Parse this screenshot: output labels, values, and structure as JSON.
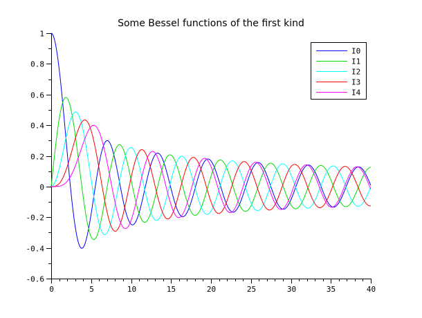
{
  "window": {
    "background": "#ffffff"
  },
  "chart_data": {
    "type": "line",
    "title": "Some Bessel functions of the first kind",
    "function_family": "Bessel functions of the first kind J_n(x), orders 0-4, plotted on x in [0,40]",
    "xlim": [
      0,
      40
    ],
    "ylim": [
      -0.6,
      1
    ],
    "x_ticks": [
      0,
      5,
      10,
      15,
      20,
      25,
      30,
      35,
      40
    ],
    "x_tick_labels": [
      "0",
      "5",
      "10",
      "15",
      "20",
      "25",
      "30",
      "35",
      "40"
    ],
    "x_minor_tick_step": 1,
    "y_ticks": [
      -0.6,
      -0.4,
      -0.2,
      0,
      0.2,
      0.4,
      0.6,
      0.8,
      1
    ],
    "y_tick_labels": [
      "-0.6",
      "-0.4",
      "-0.2",
      "0",
      "0.2",
      "0.4",
      "0.6",
      "0.8",
      "1"
    ],
    "y_minor_tick_step": 0.1,
    "grid": false,
    "sample_step_x": 0.1,
    "axis_color": "#000000",
    "xlabel": "",
    "ylabel": "",
    "legend": {
      "position": "top-right",
      "border_color": "#000000",
      "background": "#ffffff",
      "entries": [
        "I0",
        "I1",
        "I2",
        "I3",
        "I4"
      ]
    },
    "series": [
      {
        "name": "I0",
        "bessel_order": 0,
        "color": "#0000ff"
      },
      {
        "name": "I1",
        "bessel_order": 1,
        "color": "#00dd00"
      },
      {
        "name": "I2",
        "bessel_order": 2,
        "color": "#00ffff"
      },
      {
        "name": "I3",
        "bessel_order": 3,
        "color": "#ff0000"
      },
      {
        "name": "I4",
        "bessel_order": 4,
        "color": "#ff00ff"
      }
    ]
  }
}
